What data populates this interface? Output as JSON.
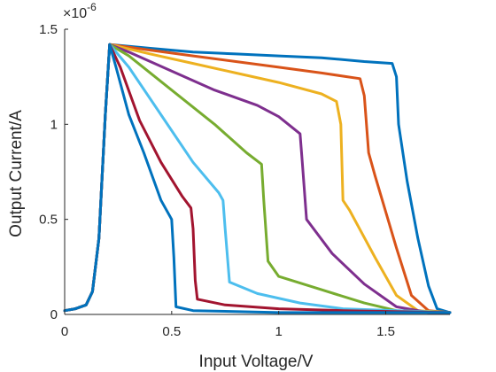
{
  "chart_data": {
    "type": "line",
    "title": "",
    "xlabel": "Input Voltage/V",
    "ylabel": "Output Current/A",
    "y_exponent_label": "×10",
    "y_exponent_power": "-6",
    "y_multiplier": 1e-06,
    "xlim": [
      0,
      1.8
    ],
    "ylim": [
      0,
      1.5
    ],
    "x_ticks": [
      0,
      0.5,
      1,
      1.5
    ],
    "x_tick_labels": [
      "0",
      "0.5",
      "1",
      "1.5"
    ],
    "y_ticks": [
      0,
      0.5,
      1,
      1.5
    ],
    "y_tick_labels": [
      "0",
      "0.5",
      "1",
      "1.5"
    ],
    "grid": false,
    "legend": "none",
    "series": [
      {
        "color": "#0072BD",
        "points": [
          [
            0,
            0.02
          ],
          [
            0.05,
            0.03
          ],
          [
            0.1,
            0.05
          ],
          [
            0.13,
            0.12
          ],
          [
            0.16,
            0.4
          ],
          [
            0.19,
            1.05
          ],
          [
            0.21,
            1.42
          ],
          [
            0.4,
            1.4
          ],
          [
            0.6,
            1.38
          ],
          [
            0.8,
            1.37
          ],
          [
            1.0,
            1.36
          ],
          [
            1.2,
            1.35
          ],
          [
            1.4,
            1.33
          ],
          [
            1.53,
            1.32
          ],
          [
            1.55,
            1.25
          ],
          [
            1.56,
            1.0
          ],
          [
            1.6,
            0.7
          ],
          [
            1.65,
            0.4
          ],
          [
            1.7,
            0.15
          ],
          [
            1.74,
            0.03
          ],
          [
            1.8,
            0.01
          ]
        ]
      },
      {
        "color": "#D95319",
        "points": [
          [
            0,
            0.02
          ],
          [
            0.05,
            0.03
          ],
          [
            0.1,
            0.05
          ],
          [
            0.13,
            0.12
          ],
          [
            0.16,
            0.4
          ],
          [
            0.19,
            1.05
          ],
          [
            0.21,
            1.42
          ],
          [
            0.4,
            1.39
          ],
          [
            0.6,
            1.36
          ],
          [
            0.8,
            1.33
          ],
          [
            1.0,
            1.3
          ],
          [
            1.2,
            1.27
          ],
          [
            1.38,
            1.24
          ],
          [
            1.4,
            1.15
          ],
          [
            1.42,
            0.85
          ],
          [
            1.45,
            0.73
          ],
          [
            1.55,
            0.35
          ],
          [
            1.62,
            0.1
          ],
          [
            1.7,
            0.02
          ],
          [
            1.8,
            0.01
          ]
        ]
      },
      {
        "color": "#EDB120",
        "points": [
          [
            0,
            0.02
          ],
          [
            0.05,
            0.03
          ],
          [
            0.1,
            0.05
          ],
          [
            0.13,
            0.12
          ],
          [
            0.16,
            0.4
          ],
          [
            0.19,
            1.05
          ],
          [
            0.21,
            1.42
          ],
          [
            0.4,
            1.37
          ],
          [
            0.6,
            1.32
          ],
          [
            0.8,
            1.27
          ],
          [
            1.0,
            1.22
          ],
          [
            1.2,
            1.16
          ],
          [
            1.27,
            1.12
          ],
          [
            1.29,
            1.0
          ],
          [
            1.3,
            0.6
          ],
          [
            1.33,
            0.55
          ],
          [
            1.45,
            0.3
          ],
          [
            1.55,
            0.1
          ],
          [
            1.65,
            0.02
          ],
          [
            1.8,
            0.01
          ]
        ]
      },
      {
        "color": "#7E2F8E",
        "points": [
          [
            0,
            0.02
          ],
          [
            0.05,
            0.03
          ],
          [
            0.1,
            0.05
          ],
          [
            0.13,
            0.12
          ],
          [
            0.16,
            0.4
          ],
          [
            0.19,
            1.05
          ],
          [
            0.21,
            1.42
          ],
          [
            0.3,
            1.38
          ],
          [
            0.5,
            1.28
          ],
          [
            0.7,
            1.18
          ],
          [
            0.9,
            1.1
          ],
          [
            1.0,
            1.04
          ],
          [
            1.1,
            0.95
          ],
          [
            1.11,
            0.8
          ],
          [
            1.13,
            0.5
          ],
          [
            1.25,
            0.32
          ],
          [
            1.4,
            0.16
          ],
          [
            1.55,
            0.04
          ],
          [
            1.7,
            0.01
          ],
          [
            1.8,
            0.01
          ]
        ]
      },
      {
        "color": "#77AC30",
        "points": [
          [
            0,
            0.02
          ],
          [
            0.05,
            0.03
          ],
          [
            0.1,
            0.05
          ],
          [
            0.13,
            0.12
          ],
          [
            0.16,
            0.4
          ],
          [
            0.19,
            1.05
          ],
          [
            0.21,
            1.42
          ],
          [
            0.3,
            1.36
          ],
          [
            0.5,
            1.18
          ],
          [
            0.7,
            1.0
          ],
          [
            0.85,
            0.85
          ],
          [
            0.92,
            0.79
          ],
          [
            0.93,
            0.6
          ],
          [
            0.95,
            0.28
          ],
          [
            1.0,
            0.2
          ],
          [
            1.2,
            0.13
          ],
          [
            1.4,
            0.06
          ],
          [
            1.55,
            0.02
          ],
          [
            1.8,
            0.01
          ]
        ]
      },
      {
        "color": "#4DBEEE",
        "points": [
          [
            0,
            0.02
          ],
          [
            0.05,
            0.03
          ],
          [
            0.1,
            0.05
          ],
          [
            0.13,
            0.12
          ],
          [
            0.16,
            0.4
          ],
          [
            0.19,
            1.05
          ],
          [
            0.21,
            1.42
          ],
          [
            0.3,
            1.3
          ],
          [
            0.45,
            1.05
          ],
          [
            0.6,
            0.8
          ],
          [
            0.72,
            0.64
          ],
          [
            0.74,
            0.6
          ],
          [
            0.75,
            0.45
          ],
          [
            0.77,
            0.17
          ],
          [
            0.9,
            0.11
          ],
          [
            1.1,
            0.06
          ],
          [
            1.3,
            0.03
          ],
          [
            1.8,
            0.01
          ]
        ]
      },
      {
        "color": "#A2142F",
        "points": [
          [
            0,
            0.02
          ],
          [
            0.05,
            0.03
          ],
          [
            0.1,
            0.05
          ],
          [
            0.13,
            0.12
          ],
          [
            0.16,
            0.4
          ],
          [
            0.19,
            1.05
          ],
          [
            0.21,
            1.42
          ],
          [
            0.26,
            1.3
          ],
          [
            0.35,
            1.02
          ],
          [
            0.45,
            0.8
          ],
          [
            0.55,
            0.62
          ],
          [
            0.59,
            0.56
          ],
          [
            0.6,
            0.45
          ],
          [
            0.61,
            0.18
          ],
          [
            0.62,
            0.08
          ],
          [
            0.75,
            0.05
          ],
          [
            1.0,
            0.03
          ],
          [
            1.3,
            0.02
          ],
          [
            1.8,
            0.01
          ]
        ]
      },
      {
        "color": "#0072BD",
        "points": [
          [
            0,
            0.02
          ],
          [
            0.05,
            0.03
          ],
          [
            0.1,
            0.05
          ],
          [
            0.13,
            0.12
          ],
          [
            0.16,
            0.4
          ],
          [
            0.19,
            1.05
          ],
          [
            0.21,
            1.42
          ],
          [
            0.24,
            1.3
          ],
          [
            0.3,
            1.05
          ],
          [
            0.37,
            0.85
          ],
          [
            0.45,
            0.6
          ],
          [
            0.5,
            0.5
          ],
          [
            0.51,
            0.3
          ],
          [
            0.52,
            0.04
          ],
          [
            0.6,
            0.02
          ],
          [
            1.0,
            0.01
          ],
          [
            1.8,
            0.01
          ]
        ]
      }
    ]
  }
}
